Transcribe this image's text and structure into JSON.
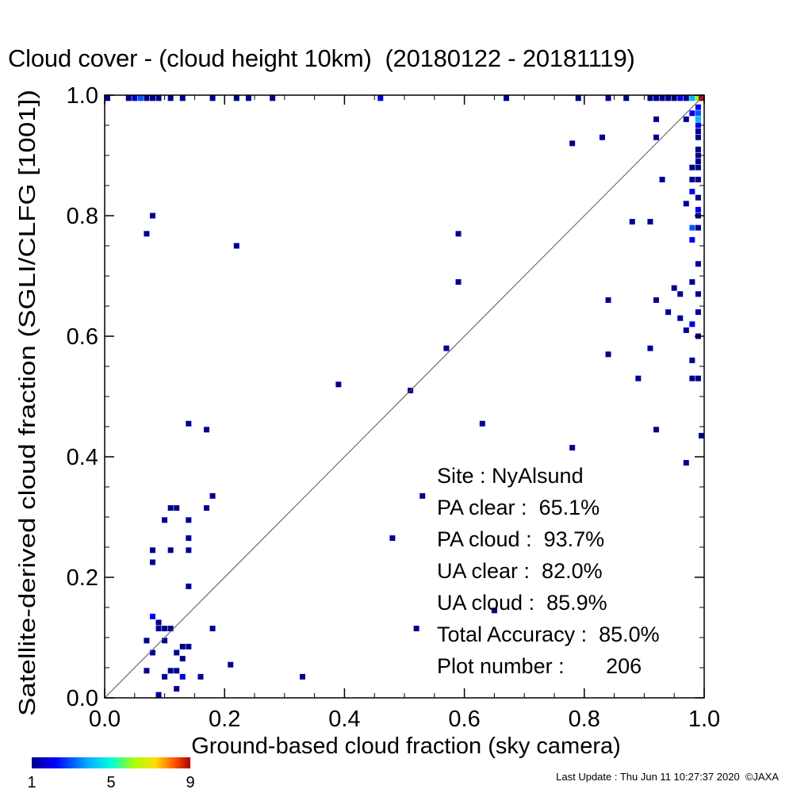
{
  "chart_data": {
    "type": "heatmap",
    "title": "Cloud cover - (cloud height 10km)  (20180122 - 20181119)",
    "xlabel": "Ground-based cloud fraction (sky camera)",
    "ylabel": "Satellite-derived cloud fraction (SGLI/CLFG [1001])",
    "xlim": [
      0,
      1
    ],
    "ylim": [
      0,
      1
    ],
    "x_ticks": [
      "0.0",
      "0.2",
      "0.4",
      "0.6",
      "0.8",
      "1.0"
    ],
    "y_ticks": [
      "0.0",
      "0.2",
      "0.4",
      "0.6",
      "0.8",
      "1.0"
    ],
    "grid": false,
    "reference_line": "1:1 diagonal",
    "colorbar": {
      "min": 1,
      "max": 9,
      "ticks": [
        "1",
        "5",
        "9"
      ],
      "colormap": "rainbow"
    },
    "stats_lines": [
      "Site : NyAlsund",
      "PA clear :  65.1%",
      "PA cloud :  93.7%",
      "UA clear :  82.0%",
      "UA cloud :  85.9%",
      "Total Accuracy :  85.0%",
      "Plot number :       206"
    ],
    "points": [
      {
        "x": 0.09,
        "y": 0.005,
        "c": 1
      },
      {
        "x": 0.12,
        "y": 0.015,
        "c": 1
      },
      {
        "x": 0.1,
        "y": 0.035,
        "c": 1
      },
      {
        "x": 0.13,
        "y": 0.035,
        "c": 2
      },
      {
        "x": 0.16,
        "y": 0.035,
        "c": 1
      },
      {
        "x": 0.07,
        "y": 0.045,
        "c": 1
      },
      {
        "x": 0.11,
        "y": 0.045,
        "c": 1
      },
      {
        "x": 0.12,
        "y": 0.045,
        "c": 1
      },
      {
        "x": 0.21,
        "y": 0.055,
        "c": 1
      },
      {
        "x": 0.33,
        "y": 0.035,
        "c": 1
      },
      {
        "x": 0.13,
        "y": 0.065,
        "c": 1
      },
      {
        "x": 0.08,
        "y": 0.075,
        "c": 1
      },
      {
        "x": 0.12,
        "y": 0.075,
        "c": 1
      },
      {
        "x": 0.13,
        "y": 0.085,
        "c": 1
      },
      {
        "x": 0.14,
        "y": 0.085,
        "c": 1
      },
      {
        "x": 0.07,
        "y": 0.095,
        "c": 1
      },
      {
        "x": 0.1,
        "y": 0.095,
        "c": 1
      },
      {
        "x": 0.09,
        "y": 0.115,
        "c": 1
      },
      {
        "x": 0.1,
        "y": 0.115,
        "c": 1
      },
      {
        "x": 0.11,
        "y": 0.115,
        "c": 1
      },
      {
        "x": 0.18,
        "y": 0.115,
        "c": 1
      },
      {
        "x": 0.09,
        "y": 0.125,
        "c": 1
      },
      {
        "x": 0.08,
        "y": 0.135,
        "c": 2
      },
      {
        "x": 0.14,
        "y": 0.185,
        "c": 1
      },
      {
        "x": 0.08,
        "y": 0.225,
        "c": 1
      },
      {
        "x": 0.08,
        "y": 0.245,
        "c": 1
      },
      {
        "x": 0.11,
        "y": 0.245,
        "c": 1
      },
      {
        "x": 0.14,
        "y": 0.245,
        "c": 1
      },
      {
        "x": 0.14,
        "y": 0.265,
        "c": 1
      },
      {
        "x": 0.1,
        "y": 0.295,
        "c": 1
      },
      {
        "x": 0.14,
        "y": 0.295,
        "c": 1
      },
      {
        "x": 0.11,
        "y": 0.315,
        "c": 1
      },
      {
        "x": 0.12,
        "y": 0.315,
        "c": 1
      },
      {
        "x": 0.17,
        "y": 0.315,
        "c": 1
      },
      {
        "x": 0.18,
        "y": 0.335,
        "c": 1
      },
      {
        "x": 0.14,
        "y": 0.455,
        "c": 1
      },
      {
        "x": 0.17,
        "y": 0.445,
        "c": 1
      },
      {
        "x": 0.07,
        "y": 0.77,
        "c": 1
      },
      {
        "x": 0.08,
        "y": 0.8,
        "c": 1
      },
      {
        "x": 0.22,
        "y": 0.75,
        "c": 1
      },
      {
        "x": 0.39,
        "y": 0.52,
        "c": 1
      },
      {
        "x": 0.48,
        "y": 0.265,
        "c": 1
      },
      {
        "x": 0.51,
        "y": 0.51,
        "c": 1
      },
      {
        "x": 0.52,
        "y": 0.115,
        "c": 1
      },
      {
        "x": 0.53,
        "y": 0.335,
        "c": 1
      },
      {
        "x": 0.57,
        "y": 0.58,
        "c": 1
      },
      {
        "x": 0.59,
        "y": 0.69,
        "c": 1
      },
      {
        "x": 0.59,
        "y": 0.77,
        "c": 1
      },
      {
        "x": 0.63,
        "y": 0.455,
        "c": 1
      },
      {
        "x": 0.65,
        "y": 0.145,
        "c": 1
      },
      {
        "x": 0.78,
        "y": 0.415,
        "c": 1
      },
      {
        "x": 0.78,
        "y": 0.92,
        "c": 1
      },
      {
        "x": 0.83,
        "y": 0.93,
        "c": 1
      },
      {
        "x": 0.84,
        "y": 0.57,
        "c": 1
      },
      {
        "x": 0.84,
        "y": 0.66,
        "c": 1
      },
      {
        "x": 0.88,
        "y": 0.79,
        "c": 1
      },
      {
        "x": 0.89,
        "y": 0.53,
        "c": 1
      },
      {
        "x": 0.91,
        "y": 0.58,
        "c": 1
      },
      {
        "x": 0.91,
        "y": 0.79,
        "c": 1
      },
      {
        "x": 0.92,
        "y": 0.445,
        "c": 1
      },
      {
        "x": 0.92,
        "y": 0.66,
        "c": 1
      },
      {
        "x": 0.92,
        "y": 0.93,
        "c": 1
      },
      {
        "x": 0.92,
        "y": 0.96,
        "c": 1
      },
      {
        "x": 0.93,
        "y": 0.86,
        "c": 1
      },
      {
        "x": 0.94,
        "y": 0.64,
        "c": 1
      },
      {
        "x": 0.95,
        "y": 0.68,
        "c": 1
      },
      {
        "x": 0.96,
        "y": 0.63,
        "c": 1
      },
      {
        "x": 0.96,
        "y": 0.67,
        "c": 1
      },
      {
        "x": 0.97,
        "y": 0.61,
        "c": 1
      },
      {
        "x": 0.97,
        "y": 0.82,
        "c": 1
      },
      {
        "x": 0.97,
        "y": 0.96,
        "c": 1
      },
      {
        "x": 0.97,
        "y": 0.39,
        "c": 1
      },
      {
        "x": 0.98,
        "y": 0.53,
        "c": 1
      },
      {
        "x": 0.98,
        "y": 0.56,
        "c": 1
      },
      {
        "x": 0.98,
        "y": 0.62,
        "c": 2
      },
      {
        "x": 0.98,
        "y": 0.69,
        "c": 1
      },
      {
        "x": 0.98,
        "y": 0.76,
        "c": 2
      },
      {
        "x": 0.98,
        "y": 0.78,
        "c": 3
      },
      {
        "x": 0.98,
        "y": 0.84,
        "c": 2
      },
      {
        "x": 0.98,
        "y": 0.86,
        "c": 1
      },
      {
        "x": 0.98,
        "y": 0.88,
        "c": 1
      },
      {
        "x": 0.98,
        "y": 0.97,
        "c": 2
      },
      {
        "x": 0.99,
        "y": 0.53,
        "c": 1
      },
      {
        "x": 0.99,
        "y": 0.6,
        "c": 1
      },
      {
        "x": 0.99,
        "y": 0.64,
        "c": 1
      },
      {
        "x": 0.99,
        "y": 0.67,
        "c": 1
      },
      {
        "x": 0.99,
        "y": 0.72,
        "c": 1
      },
      {
        "x": 0.99,
        "y": 0.78,
        "c": 1
      },
      {
        "x": 0.99,
        "y": 0.8,
        "c": 1
      },
      {
        "x": 0.99,
        "y": 0.81,
        "c": 2
      },
      {
        "x": 0.99,
        "y": 0.83,
        "c": 1
      },
      {
        "x": 0.99,
        "y": 0.86,
        "c": 1
      },
      {
        "x": 0.99,
        "y": 0.88,
        "c": 1
      },
      {
        "x": 0.99,
        "y": 0.89,
        "c": 1
      },
      {
        "x": 0.99,
        "y": 0.9,
        "c": 1
      },
      {
        "x": 0.99,
        "y": 0.91,
        "c": 1
      },
      {
        "x": 0.99,
        "y": 0.93,
        "c": 1
      },
      {
        "x": 0.99,
        "y": 0.94,
        "c": 1
      },
      {
        "x": 0.99,
        "y": 0.95,
        "c": 2
      },
      {
        "x": 0.99,
        "y": 0.96,
        "c": 4
      },
      {
        "x": 0.99,
        "y": 0.97,
        "c": 3
      },
      {
        "x": 0.99,
        "y": 0.98,
        "c": 2
      },
      {
        "x": 1.0,
        "y": 0.435,
        "c": 1
      },
      {
        "x": 0.0,
        "y": 0.995,
        "c": 1
      },
      {
        "x": 0.04,
        "y": 0.995,
        "c": 1
      },
      {
        "x": 0.05,
        "y": 0.995,
        "c": 2
      },
      {
        "x": 0.06,
        "y": 0.995,
        "c": 3
      },
      {
        "x": 0.07,
        "y": 0.995,
        "c": 1
      },
      {
        "x": 0.08,
        "y": 0.995,
        "c": 1
      },
      {
        "x": 0.09,
        "y": 0.995,
        "c": 1
      },
      {
        "x": 0.11,
        "y": 0.995,
        "c": 1
      },
      {
        "x": 0.13,
        "y": 0.995,
        "c": 1
      },
      {
        "x": 0.18,
        "y": 0.995,
        "c": 1
      },
      {
        "x": 0.22,
        "y": 0.995,
        "c": 1
      },
      {
        "x": 0.24,
        "y": 0.995,
        "c": 1
      },
      {
        "x": 0.28,
        "y": 0.995,
        "c": 1
      },
      {
        "x": 0.46,
        "y": 0.995,
        "c": 2
      },
      {
        "x": 0.67,
        "y": 0.995,
        "c": 1
      },
      {
        "x": 0.79,
        "y": 0.995,
        "c": 1
      },
      {
        "x": 0.84,
        "y": 0.995,
        "c": 1
      },
      {
        "x": 0.87,
        "y": 0.995,
        "c": 1
      },
      {
        "x": 0.91,
        "y": 0.995,
        "c": 1
      },
      {
        "x": 0.92,
        "y": 0.995,
        "c": 1
      },
      {
        "x": 0.93,
        "y": 0.995,
        "c": 1
      },
      {
        "x": 0.94,
        "y": 0.995,
        "c": 1
      },
      {
        "x": 0.95,
        "y": 0.995,
        "c": 1
      },
      {
        "x": 0.96,
        "y": 0.995,
        "c": 2
      },
      {
        "x": 0.97,
        "y": 0.995,
        "c": 1
      },
      {
        "x": 0.98,
        "y": 0.995,
        "c": 4
      },
      {
        "x": 0.99,
        "y": 0.995,
        "c": 6
      },
      {
        "x": 1.0,
        "y": 0.995,
        "c": 9
      }
    ]
  },
  "footer": "Last Update : Thu Jun 11 10:27:37 2020  ©JAXA"
}
